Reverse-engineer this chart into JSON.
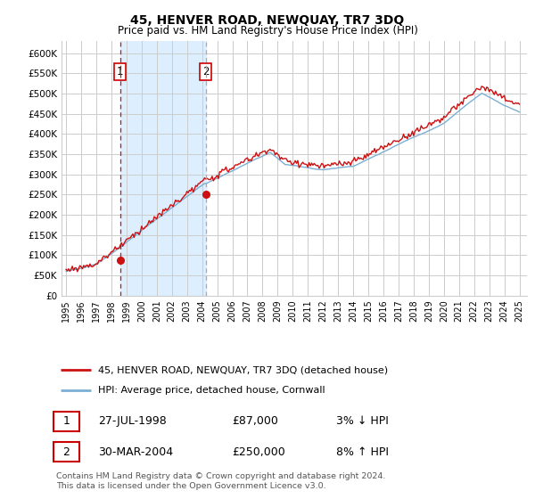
{
  "title": "45, HENVER ROAD, NEWQUAY, TR7 3DQ",
  "subtitle": "Price paid vs. HM Land Registry's House Price Index (HPI)",
  "ylabel_ticks": [
    "£0",
    "£50K",
    "£100K",
    "£150K",
    "£200K",
    "£250K",
    "£300K",
    "£350K",
    "£400K",
    "£450K",
    "£500K",
    "£550K",
    "£600K"
  ],
  "ytick_vals": [
    0,
    50000,
    100000,
    150000,
    200000,
    250000,
    300000,
    350000,
    400000,
    450000,
    500000,
    550000,
    600000
  ],
  "ylim": [
    0,
    630000
  ],
  "xlim_start": 1994.7,
  "xlim_end": 2025.5,
  "sale1_year": 1998.57,
  "sale1_price": 87000,
  "sale2_year": 2004.24,
  "sale2_price": 250000,
  "sale1_date": "27-JUL-1998",
  "sale1_amount": "£87,000",
  "sale1_pct": "3% ↓ HPI",
  "sale2_date": "30-MAR-2004",
  "sale2_amount": "£250,000",
  "sale2_pct": "8% ↑ HPI",
  "hpi_line_color": "#7bafd4",
  "price_line_color": "#cc1111",
  "sale_marker_color": "#cc1111",
  "vline1_color": "#cc1111",
  "vline2_color": "#aaaaaa",
  "shade_color": "#ddeeff",
  "legend_label_property": "45, HENVER ROAD, NEWQUAY, TR7 3DQ (detached house)",
  "legend_label_hpi": "HPI: Average price, detached house, Cornwall",
  "footer": "Contains HM Land Registry data © Crown copyright and database right 2024.\nThis data is licensed under the Open Government Licence v3.0.",
  "background_color": "#ffffff",
  "grid_color": "#cccccc",
  "title_fontsize": 10,
  "subtitle_fontsize": 8.5,
  "tick_fontsize": 7.5,
  "label_box_color": "#cc0000"
}
